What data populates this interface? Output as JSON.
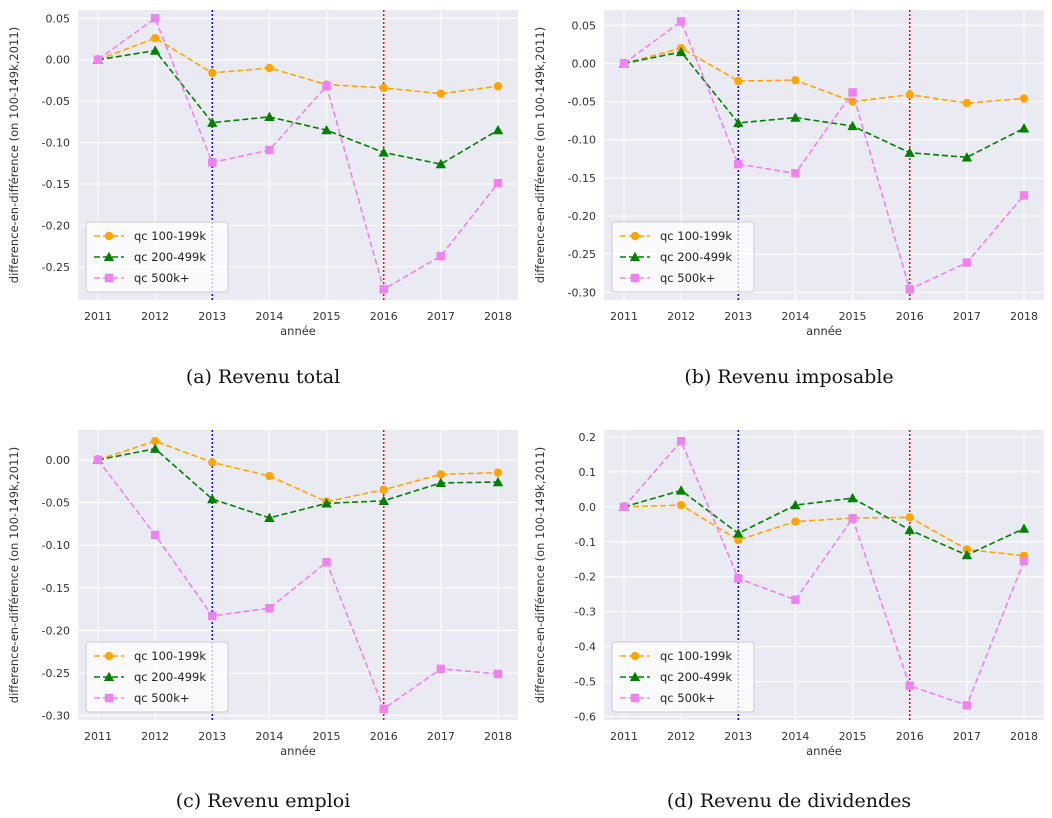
{
  "colors": {
    "qc_100_199k": "#FFA500",
    "qc_200_499k": "#008000",
    "qc_500k_plus": "#EE82EE",
    "vline_2013": "#0000FF",
    "vline_2016": "#FF0000",
    "plot_background": "#EAEAF2"
  },
  "captions": [
    "(a) Revenu total",
    "(b) Revenu imposable",
    "(c) Revenu emploi",
    "(d) Revenu de dividendes"
  ],
  "chart_data": [
    {
      "type": "line",
      "caption": "(a) Revenu total",
      "xlabel": "année",
      "ylabel": "difference-en-différence (on 100-149k,2011)",
      "x": [
        2011,
        2012,
        2013,
        2014,
        2015,
        2016,
        2017,
        2018
      ],
      "ylim": [
        -0.29,
        0.06
      ],
      "yticks": [
        0.05,
        0.0,
        -0.05,
        -0.1,
        -0.15,
        -0.2,
        -0.25
      ],
      "ytick_labels": [
        "0.05",
        "0.00",
        "-0.05",
        "-0.10",
        "-0.15",
        "-0.20",
        "-0.25"
      ],
      "vlines": [
        2013,
        2016
      ],
      "grid": true,
      "legend_position": "lower-left",
      "series": [
        {
          "name": "qc 100-199k",
          "marker": "circle",
          "values": [
            0.0,
            0.026,
            -0.016,
            -0.01,
            -0.03,
            -0.034,
            -0.041,
            -0.032
          ]
        },
        {
          "name": "qc 200-499k",
          "marker": "triangle",
          "values": [
            0.0,
            0.011,
            -0.076,
            -0.069,
            -0.085,
            -0.112,
            -0.126,
            -0.085
          ]
        },
        {
          "name": "qc 500k+",
          "marker": "square",
          "values": [
            0.0,
            0.05,
            -0.124,
            -0.109,
            -0.032,
            -0.277,
            -0.237,
            -0.149
          ]
        }
      ]
    },
    {
      "type": "line",
      "caption": "(b) Revenu imposable",
      "xlabel": "année",
      "ylabel": "difference-en-différence (on 100-149k,2011)",
      "x": [
        2011,
        2012,
        2013,
        2014,
        2015,
        2016,
        2017,
        2018
      ],
      "ylim": [
        -0.31,
        0.07
      ],
      "yticks": [
        0.05,
        0.0,
        -0.05,
        -0.1,
        -0.15,
        -0.2,
        -0.25,
        -0.3
      ],
      "ytick_labels": [
        "0.05",
        "0.00",
        "-0.05",
        "-0.10",
        "-0.15",
        "-0.20",
        "-0.25",
        "-0.30"
      ],
      "vlines": [
        2013,
        2016
      ],
      "grid": true,
      "legend_position": "lower-left",
      "series": [
        {
          "name": "qc 100-199k",
          "marker": "circle",
          "values": [
            0.0,
            0.02,
            -0.023,
            -0.022,
            -0.05,
            -0.041,
            -0.052,
            -0.046
          ]
        },
        {
          "name": "qc 200-499k",
          "marker": "triangle",
          "values": [
            0.0,
            0.015,
            -0.078,
            -0.071,
            -0.082,
            -0.117,
            -0.123,
            -0.085
          ]
        },
        {
          "name": "qc 500k+",
          "marker": "square",
          "values": [
            0.0,
            0.055,
            -0.132,
            -0.144,
            -0.038,
            -0.296,
            -0.261,
            -0.173
          ]
        }
      ]
    },
    {
      "type": "line",
      "caption": "(c) Revenu emploi",
      "xlabel": "année",
      "ylabel": "difference-en-différence (on 100-149k,2011)",
      "x": [
        2011,
        2012,
        2013,
        2014,
        2015,
        2016,
        2017,
        2018
      ],
      "ylim": [
        -0.305,
        0.035
      ],
      "yticks": [
        0.0,
        -0.05,
        -0.1,
        -0.15,
        -0.2,
        -0.25,
        -0.3
      ],
      "ytick_labels": [
        "0.00",
        "-0.05",
        "-0.10",
        "-0.15",
        "-0.20",
        "-0.25",
        "-0.30"
      ],
      "vlines": [
        2013,
        2016
      ],
      "grid": true,
      "legend_position": "lower-left",
      "series": [
        {
          "name": "qc 100-199k",
          "marker": "circle",
          "values": [
            0.0,
            0.022,
            -0.003,
            -0.019,
            -0.049,
            -0.035,
            -0.017,
            -0.015
          ]
        },
        {
          "name": "qc 200-499k",
          "marker": "triangle",
          "values": [
            0.0,
            0.013,
            -0.046,
            -0.068,
            -0.051,
            -0.048,
            -0.027,
            -0.026
          ]
        },
        {
          "name": "qc 500k+",
          "marker": "square",
          "values": [
            0.0,
            -0.088,
            -0.183,
            -0.174,
            -0.12,
            -0.292,
            -0.245,
            -0.251
          ]
        }
      ]
    },
    {
      "type": "line",
      "caption": "(d) Revenu de dividendes",
      "xlabel": "année",
      "ylabel": "difference-en-différence (on 100-149k,2011)",
      "x": [
        2011,
        2012,
        2013,
        2014,
        2015,
        2016,
        2017,
        2018
      ],
      "ylim": [
        -0.61,
        0.22
      ],
      "yticks": [
        0.2,
        0.1,
        0.0,
        -0.1,
        -0.2,
        -0.3,
        -0.4,
        -0.5,
        -0.6
      ],
      "ytick_labels": [
        "0.2",
        "0.1",
        "0.0",
        "-0.1",
        "-0.2",
        "-0.3",
        "-0.4",
        "-0.5",
        "-0.6"
      ],
      "vlines": [
        2013,
        2016
      ],
      "grid": true,
      "legend_position": "lower-left",
      "series": [
        {
          "name": "qc 100-199k",
          "marker": "circle",
          "values": [
            0.0,
            0.005,
            -0.095,
            -0.042,
            -0.032,
            -0.03,
            -0.122,
            -0.14
          ]
        },
        {
          "name": "qc 200-499k",
          "marker": "triangle",
          "values": [
            0.0,
            0.047,
            -0.076,
            0.005,
            0.025,
            -0.066,
            -0.138,
            -0.062
          ]
        },
        {
          "name": "qc 500k+",
          "marker": "square",
          "values": [
            0.0,
            0.188,
            -0.205,
            -0.266,
            -0.033,
            -0.512,
            -0.568,
            -0.155
          ]
        }
      ]
    }
  ]
}
